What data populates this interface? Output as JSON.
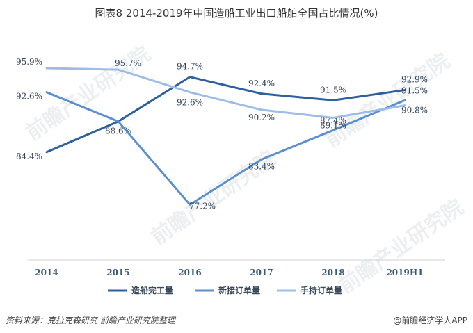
{
  "title": "图表8  2014-2019年中国造船工业出口船舶全国占比情况(%)",
  "source": "资料来源：克拉克森研究 前瞻产业研究院整理",
  "brand": "@前瞻经济学人APP",
  "watermark": "前瞻产业研究院",
  "chart_data": {
    "type": "line",
    "categories": [
      "2014",
      "2015",
      "2016",
      "2017",
      "2018",
      "2019H1"
    ],
    "ylim": [
      70,
      100
    ],
    "grid": false,
    "legend_position": "bottom",
    "series": [
      {
        "name": "造船完工量",
        "color": "#2e5f9e",
        "values": [
          84.4,
          88.6,
          94.7,
          92.4,
          91.5,
          92.9
        ],
        "labels": [
          "84.4%",
          "88.6%",
          "94.7%",
          "92.4%",
          "91.5%",
          "92.9%"
        ]
      },
      {
        "name": "新接订单量",
        "color": "#5b8fd0",
        "values": [
          92.6,
          88.6,
          77.2,
          83.4,
          87.4,
          91.5
        ],
        "labels": [
          "92.6%",
          "",
          "77.2%",
          "83.4%",
          "87.4%",
          "91.5%"
        ]
      },
      {
        "name": "手持订单量",
        "color": "#9dbde8",
        "values": [
          95.9,
          95.7,
          92.6,
          90.2,
          89.1,
          90.8
        ],
        "labels": [
          "95.9%",
          "95.7%",
          "92.6%",
          "90.2%",
          "89.1%",
          "90.8%"
        ]
      }
    ]
  }
}
